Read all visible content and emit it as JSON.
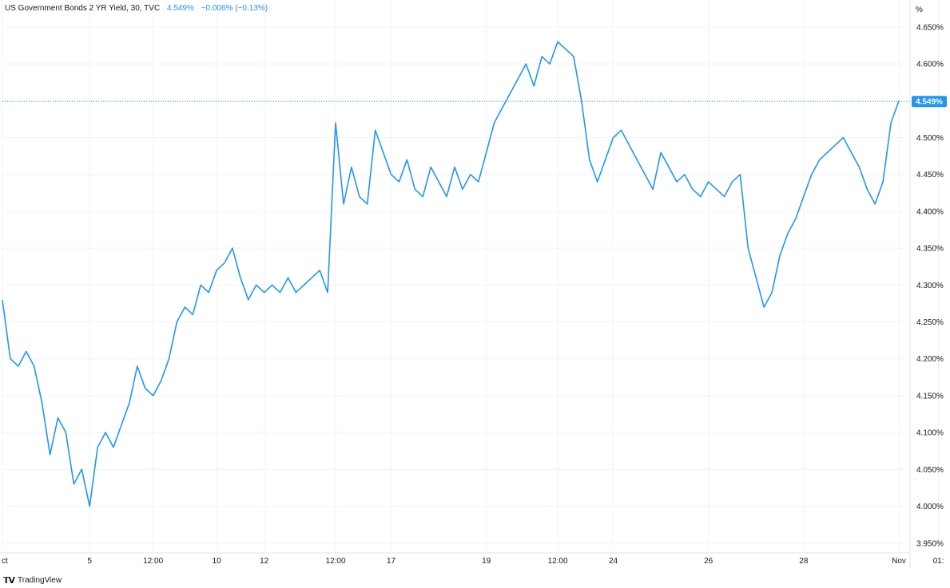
{
  "legend": {
    "symbol": "US Government Bonds 2 YR Yield, 30, TVC",
    "value": "4.549%",
    "change": "−0.006% (−0.13%)"
  },
  "brand": {
    "logo_icon": "tradingview-logo-icon",
    "name": "TradingView"
  },
  "colors": {
    "line": "#2196f3",
    "grid": "#f0f3fa",
    "axis_text": "#131722",
    "last_badge": "#2196f3"
  },
  "chart_data": {
    "type": "line",
    "title": "",
    "xlabel": "",
    "ylabel": "%",
    "ylim": [
      3.94,
      4.665
    ],
    "y_ticks": [
      "4.650%",
      "4.600%",
      "4.550%",
      "4.500%",
      "4.450%",
      "4.400%",
      "4.350%",
      "4.300%",
      "4.250%",
      "4.200%",
      "4.150%",
      "4.100%",
      "4.050%",
      "4.000%",
      "3.950%"
    ],
    "y_tick_values": [
      4.65,
      4.6,
      4.55,
      4.5,
      4.45,
      4.4,
      4.35,
      4.3,
      4.25,
      4.2,
      4.15,
      4.1,
      4.05,
      4.0,
      3.95
    ],
    "x_ticks": [
      {
        "label": "ct",
        "i": 0
      },
      {
        "label": "5",
        "i": 11
      },
      {
        "label": "12:00",
        "i": 19
      },
      {
        "label": "10",
        "i": 27
      },
      {
        "label": "12",
        "i": 33
      },
      {
        "label": "12:00",
        "i": 42
      },
      {
        "label": "17",
        "i": 49
      },
      {
        "label": "19",
        "i": 61
      },
      {
        "label": "12:00",
        "i": 70
      },
      {
        "label": "24",
        "i": 77
      },
      {
        "label": "26",
        "i": 89
      },
      {
        "label": "28",
        "i": 101
      },
      {
        "label": "Nov",
        "i": 113
      },
      {
        "label": "01:",
        "i": 118
      }
    ],
    "last_value": 4.549,
    "last_label": "4.549%",
    "grid": true,
    "series": [
      {
        "values": [
          4.28,
          4.2,
          4.19,
          4.21,
          4.19,
          4.14,
          4.07,
          4.12,
          4.1,
          4.03,
          4.05,
          4.0,
          4.08,
          4.1,
          4.08,
          4.11,
          4.14,
          4.19,
          4.16,
          4.15,
          4.17,
          4.2,
          4.25,
          4.27,
          4.26,
          4.3,
          4.29,
          4.32,
          4.33,
          4.35,
          4.31,
          4.28,
          4.3,
          4.29,
          4.3,
          4.29,
          4.31,
          4.29,
          4.3,
          4.31,
          4.32,
          4.29,
          4.52,
          4.41,
          4.46,
          4.42,
          4.41,
          4.51,
          4.48,
          4.45,
          4.44,
          4.47,
          4.43,
          4.42,
          4.46,
          4.44,
          4.42,
          4.46,
          4.43,
          4.45,
          4.44,
          4.48,
          4.52,
          4.54,
          4.56,
          4.58,
          4.6,
          4.57,
          4.61,
          4.6,
          4.63,
          4.62,
          4.61,
          4.55,
          4.47,
          4.44,
          4.47,
          4.5,
          4.51,
          4.49,
          4.47,
          4.45,
          4.43,
          4.48,
          4.46,
          4.44,
          4.45,
          4.43,
          4.42,
          4.44,
          4.43,
          4.42,
          4.44,
          4.45,
          4.35,
          4.31,
          4.27,
          4.29,
          4.34,
          4.37,
          4.39,
          4.42,
          4.45,
          4.47,
          4.48,
          4.49,
          4.5,
          4.48,
          4.46,
          4.43,
          4.41,
          4.44,
          4.52,
          4.55
        ]
      }
    ]
  }
}
